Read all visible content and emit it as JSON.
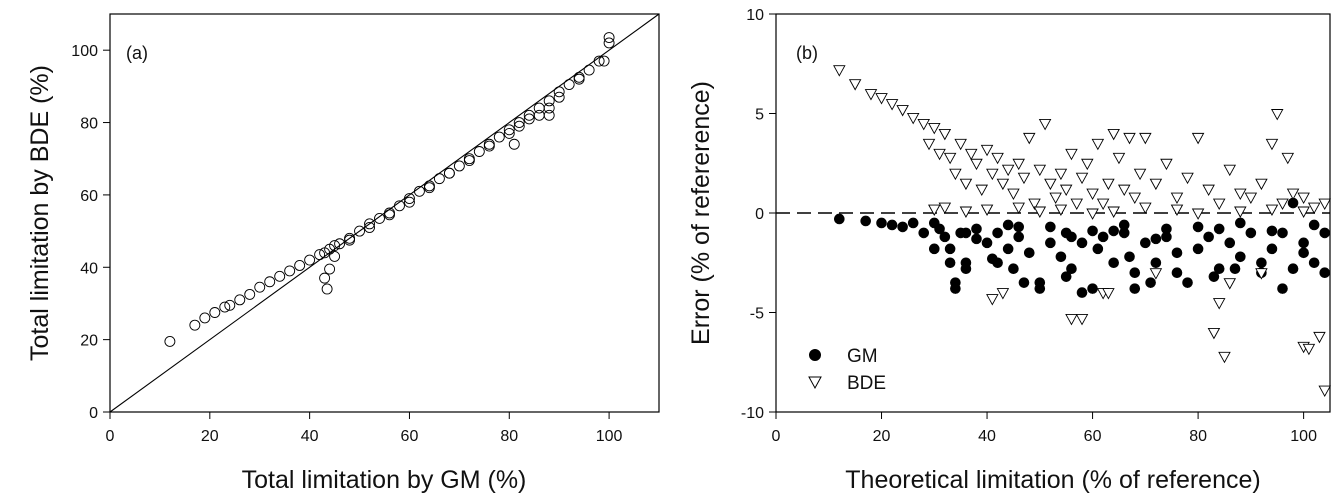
{
  "chart_data": [
    {
      "type": "scatter",
      "panel_label": "(a)",
      "xlabel": "Total limitation by GM (%)",
      "ylabel": "Total limitation by BDE (%)",
      "xlim": [
        0,
        110
      ],
      "ylim": [
        0,
        110
      ],
      "xticks": [
        0,
        20,
        40,
        60,
        80,
        100
      ],
      "yticks": [
        0,
        20,
        40,
        60,
        80,
        100
      ],
      "reference_line": "1:1 line",
      "marker": "open-circle",
      "legend": "none",
      "grid": false,
      "series": [
        {
          "x": [
            12,
            17,
            19,
            21,
            23,
            24,
            26,
            28,
            30,
            32,
            34,
            36,
            38,
            40,
            42,
            43,
            44,
            45,
            46,
            48,
            50,
            52,
            54,
            56,
            58,
            60,
            62,
            64,
            66,
            68,
            70,
            72,
            74,
            76,
            78,
            80,
            82,
            84,
            86,
            88,
            90,
            92,
            94,
            96,
            98,
            100,
            43,
            43.5,
            44,
            45,
            48,
            52,
            56,
            60,
            64,
            68,
            72,
            76,
            80,
            81,
            82,
            84,
            86,
            88,
            88,
            90,
            94,
            99,
            100
          ],
          "y": [
            19.5,
            24,
            26,
            27.5,
            29,
            29.5,
            31,
            32.5,
            34.5,
            36,
            37.5,
            39,
            40.5,
            42,
            43.5,
            44,
            45,
            46,
            46.5,
            48,
            50,
            52,
            53.5,
            55,
            57,
            59,
            61,
            62.5,
            64.5,
            66,
            68,
            70,
            72,
            74,
            76,
            78,
            80,
            82,
            84,
            86,
            88.5,
            90.5,
            92.5,
            94.5,
            97,
            102,
            37,
            34,
            39.5,
            43,
            47.5,
            51,
            54.5,
            58,
            62,
            66,
            69.5,
            73.5,
            77,
            74,
            79,
            81,
            82,
            84,
            82,
            87,
            92,
            97,
            103.5
          ]
        }
      ]
    },
    {
      "type": "scatter",
      "panel_label": "(b)",
      "xlabel": "Theoretical limitation (% of reference)",
      "ylabel": "Error (% of refererence)",
      "xlim": [
        0,
        105
      ],
      "ylim": [
        -10,
        10
      ],
      "xticks": [
        0,
        20,
        40,
        60,
        80,
        100
      ],
      "yticks": [
        -10,
        -5,
        0,
        5,
        10
      ],
      "reference_line": "dashed zero line",
      "legend": "bottom-left",
      "grid": false,
      "series": [
        {
          "name": "GM",
          "marker": "filled-circle",
          "x": [
            12,
            17,
            20,
            22,
            24,
            26,
            28,
            30,
            31,
            32,
            33,
            34,
            35,
            36,
            38,
            40,
            41,
            42,
            44,
            45,
            46,
            48,
            50,
            52,
            54,
            55,
            56,
            58,
            60,
            61,
            62,
            64,
            66,
            67,
            68,
            70,
            72,
            74,
            76,
            78,
            80,
            82,
            84,
            86,
            88,
            90,
            92,
            94,
            96,
            98,
            100,
            102,
            104,
            33,
            34,
            36,
            42,
            47,
            50,
            55,
            58,
            68,
            71,
            76,
            83,
            87,
            92,
            96,
            100,
            104,
            30,
            38,
            44,
            52,
            60,
            66,
            74,
            80,
            88,
            94,
            102,
            36,
            46,
            56,
            64,
            72,
            84,
            98
          ],
          "y": [
            -0.3,
            -0.4,
            -0.5,
            -0.6,
            -0.7,
            -0.5,
            -1.0,
            -1.8,
            -0.8,
            -1.2,
            -2.5,
            -3.8,
            -1.0,
            -2.5,
            -1.3,
            -1.5,
            -2.3,
            -1.0,
            -1.8,
            -2.8,
            -1.2,
            -2.0,
            -3.5,
            -1.5,
            -2.2,
            -1.0,
            -2.8,
            -1.5,
            -3.8,
            -1.8,
            -1.2,
            -2.5,
            -1.0,
            -2.2,
            -3.0,
            -1.5,
            -2.5,
            -1.2,
            -2.0,
            -3.5,
            -1.8,
            -1.2,
            -2.8,
            -1.5,
            -2.2,
            -1.0,
            -2.5,
            -1.8,
            -1.0,
            -2.8,
            -1.5,
            -2.5,
            -3.0,
            -1.8,
            -3.5,
            -2.8,
            -2.5,
            -3.5,
            -3.8,
            -3.2,
            -4.0,
            -3.8,
            -3.5,
            -3.0,
            -3.2,
            -2.8,
            -3.0,
            -3.8,
            -2.0,
            -1.0,
            -0.5,
            -0.8,
            -0.6,
            -0.7,
            -0.9,
            -0.6,
            -0.8,
            -0.7,
            -0.5,
            -0.9,
            -0.6,
            -1.0,
            -0.7,
            -1.2,
            -0.9,
            -1.3,
            -0.8,
            0.5
          ]
        },
        {
          "name": "BDE",
          "marker": "open-triangle-down",
          "x": [
            12,
            15,
            18,
            20,
            22,
            24,
            26,
            28,
            29,
            30,
            31,
            32,
            33,
            34,
            35,
            36,
            37,
            38,
            39,
            40,
            41,
            42,
            43,
            44,
            45,
            46,
            47,
            48,
            49,
            50,
            51,
            52,
            53,
            54,
            55,
            56,
            57,
            58,
            59,
            60,
            61,
            62,
            63,
            64,
            65,
            66,
            67,
            68,
            69,
            70,
            72,
            74,
            76,
            78,
            80,
            82,
            84,
            86,
            88,
            90,
            92,
            94,
            96,
            98,
            100,
            102,
            104,
            41,
            43,
            56,
            58,
            62,
            83,
            85,
            84,
            92,
            100,
            101,
            103,
            104,
            63,
            72,
            95,
            97,
            86,
            30,
            32,
            36,
            40,
            46,
            50,
            54,
            60,
            64,
            70,
            76,
            80,
            88,
            94,
            100
          ],
          "y": [
            7.2,
            6.5,
            6.0,
            5.8,
            5.5,
            5.2,
            4.8,
            4.5,
            3.5,
            4.3,
            3.0,
            4.0,
            2.8,
            2.0,
            3.5,
            1.5,
            3.0,
            2.5,
            1.2,
            3.2,
            2.0,
            2.8,
            1.5,
            2.2,
            1.0,
            2.5,
            1.8,
            3.8,
            0.5,
            2.2,
            4.5,
            1.5,
            0.8,
            2.0,
            1.2,
            3.0,
            0.5,
            1.8,
            2.5,
            1.0,
            3.5,
            0.5,
            1.5,
            4.0,
            2.8,
            1.2,
            3.8,
            0.8,
            2.0,
            3.8,
            1.5,
            2.5,
            0.8,
            1.8,
            3.8,
            1.2,
            0.5,
            2.2,
            1.0,
            0.8,
            1.5,
            3.5,
            0.5,
            1.0,
            0.8,
            0.3,
            0.5,
            -4.3,
            -4.0,
            -5.3,
            -5.3,
            -4.0,
            -6.0,
            -7.2,
            -4.5,
            -3.0,
            -6.7,
            -6.8,
            -6.2,
            -8.9,
            -4.0,
            -3.0,
            5.0,
            2.8,
            -3.5,
            0.2,
            0.3,
            0.1,
            0.2,
            0.3,
            0.1,
            0.2,
            0.0,
            0.1,
            0.3,
            0.2,
            0.0,
            0.1,
            0.2,
            0.1
          ]
        }
      ]
    }
  ]
}
